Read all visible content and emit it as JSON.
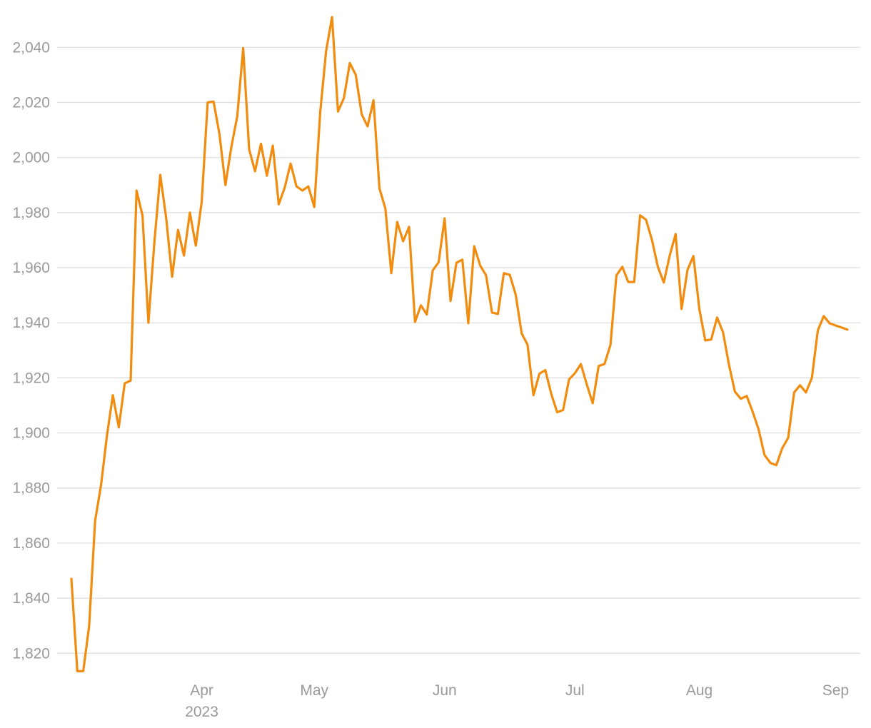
{
  "chart_data": {
    "type": "line",
    "color": "#f28c0f",
    "grid": true,
    "ylim": [
      1811,
      2052
    ],
    "yticks": [
      {
        "value": 1820,
        "label": "1,820"
      },
      {
        "value": 1840,
        "label": "1,840"
      },
      {
        "value": 1860,
        "label": "1,860"
      },
      {
        "value": 1880,
        "label": "1,880"
      },
      {
        "value": 1900,
        "label": "1,900"
      },
      {
        "value": 1920,
        "label": "1,920"
      },
      {
        "value": 1940,
        "label": "1,940"
      },
      {
        "value": 1960,
        "label": "1,960"
      },
      {
        "value": 1980,
        "label": "1,980"
      },
      {
        "value": 2000,
        "label": "2,000"
      },
      {
        "value": 2020,
        "label": "2,020"
      },
      {
        "value": 2040,
        "label": "2,040"
      }
    ],
    "year_label": "2023",
    "categories": [
      null,
      null,
      null,
      null,
      null,
      null,
      null,
      null,
      null,
      null,
      null,
      null,
      null,
      null,
      null,
      null,
      null,
      null,
      null,
      null,
      null,
      null,
      "Apr",
      null,
      null,
      null,
      null,
      null,
      null,
      null,
      null,
      null,
      null,
      null,
      null,
      null,
      null,
      null,
      null,
      null,
      null,
      "May",
      null,
      null,
      null,
      null,
      null,
      null,
      null,
      null,
      null,
      null,
      null,
      null,
      null,
      null,
      null,
      null,
      null,
      null,
      null,
      null,
      null,
      "Jun",
      null,
      null,
      null,
      null,
      null,
      null,
      null,
      null,
      null,
      null,
      null,
      null,
      null,
      null,
      null,
      null,
      null,
      null,
      null,
      null,
      null,
      "Jul",
      null,
      null,
      null,
      null,
      null,
      null,
      null,
      null,
      null,
      null,
      null,
      null,
      null,
      null,
      null,
      null,
      null,
      null,
      null,
      null,
      "Aug",
      null,
      null,
      null,
      null,
      null,
      null,
      null,
      null,
      null,
      null,
      null,
      null,
      null,
      null,
      null,
      null,
      null,
      null,
      null,
      null,
      null,
      null,
      "Sep",
      null,
      null
    ],
    "values": [
      1847,
      1813.5,
      1813.5,
      1830,
      1868,
      1881,
      1899,
      1913.7,
      1902,
      1918,
      1919,
      1988,
      1979,
      1940,
      1969,
      1993.7,
      1978,
      1956.7,
      1973.7,
      1964.4,
      1980,
      1968,
      1984,
      2020,
      2020.3,
      2008.4,
      1990,
      2003.8,
      2015,
      2039.7,
      2003,
      1995,
      2005,
      1993.4,
      2004.3,
      1983,
      1989,
      1997.8,
      1989.5,
      1988,
      1989.5,
      1982,
      2016.4,
      2038.7,
      2051,
      2016.7,
      2021.6,
      2034.3,
      2030,
      2015.7,
      2011.3,
      2020.8,
      1988.8,
      1981.5,
      1958,
      1976.6,
      1969.6,
      1974.8,
      1940.3,
      1946.3,
      1943,
      1959,
      1962,
      1977.9,
      1947.9,
      1961.8,
      1962.9,
      1939.8,
      1967.8,
      1960.8,
      1957.2,
      1943.7,
      1943.2,
      1958,
      1957.4,
      1950.2,
      1936.2,
      1932,
      1913.7,
      1921.5,
      1922.8,
      1914.2,
      1907.5,
      1908.3,
      1919.4,
      1921.7,
      1925,
      1917.6,
      1910.8,
      1924.3,
      1925,
      1932,
      1957.2,
      1960.3,
      1954.8,
      1954.8,
      1979,
      1977.4,
      1970.1,
      1960.3,
      1954.6,
      1964.4,
      1972.2,
      1945,
      1959.2,
      1964.2,
      1945,
      1933.6,
      1933.9,
      1941.9,
      1936.5,
      1924.8,
      1915,
      1912.4,
      1913.4,
      1907.7,
      1901.3,
      1892,
      1889.1,
      1888.3,
      1894.5,
      1898.2,
      1914.7,
      1917.3,
      1914.7,
      1920,
      1937.2,
      1942.4,
      1939.8,
      1939,
      1938.3,
      1937.5
    ]
  }
}
